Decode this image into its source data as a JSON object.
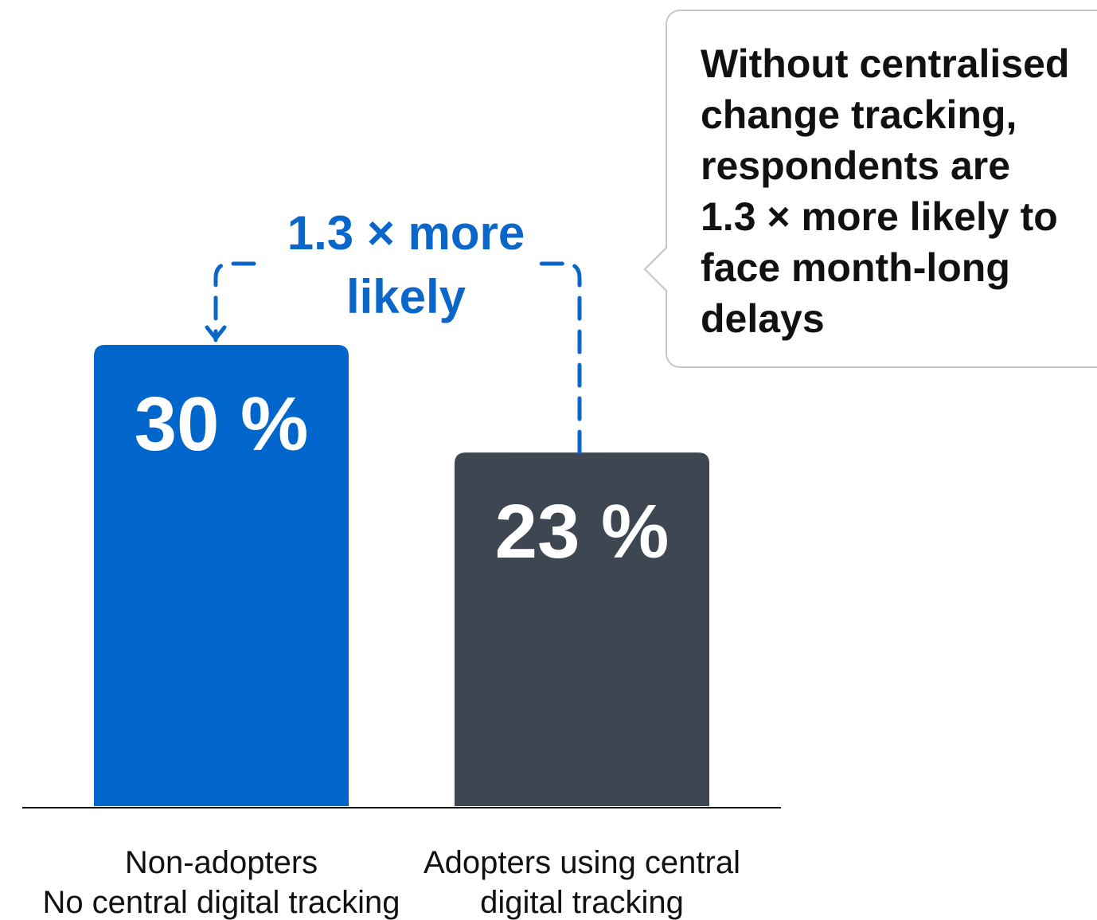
{
  "chart_data": {
    "type": "bar",
    "categories": [
      [
        "Non-adopters",
        "No central digital tracking"
      ],
      [
        "Adopters using central",
        "digital tracking"
      ]
    ],
    "values": [
      30,
      23
    ],
    "value_labels": [
      "30 %",
      "23 %"
    ],
    "unit": "%",
    "ylim": [
      0,
      30
    ],
    "grid": false,
    "bar_colors": [
      "#0066cc",
      "#3d4651"
    ],
    "annotation": {
      "text_lines": [
        "1.3 × more",
        "likely"
      ],
      "color": "#0a66c8",
      "style": "dashed bracket with arrow from second bar to first bar"
    },
    "callout": {
      "text": "Without centralised change tracking, respondents are 1.3 × more likely to face month-long delays",
      "lines": [
        "Without centralised",
        "change tracking,",
        "respondents are",
        "1.3 × more likely to",
        "face month-long",
        "delays"
      ]
    }
  }
}
